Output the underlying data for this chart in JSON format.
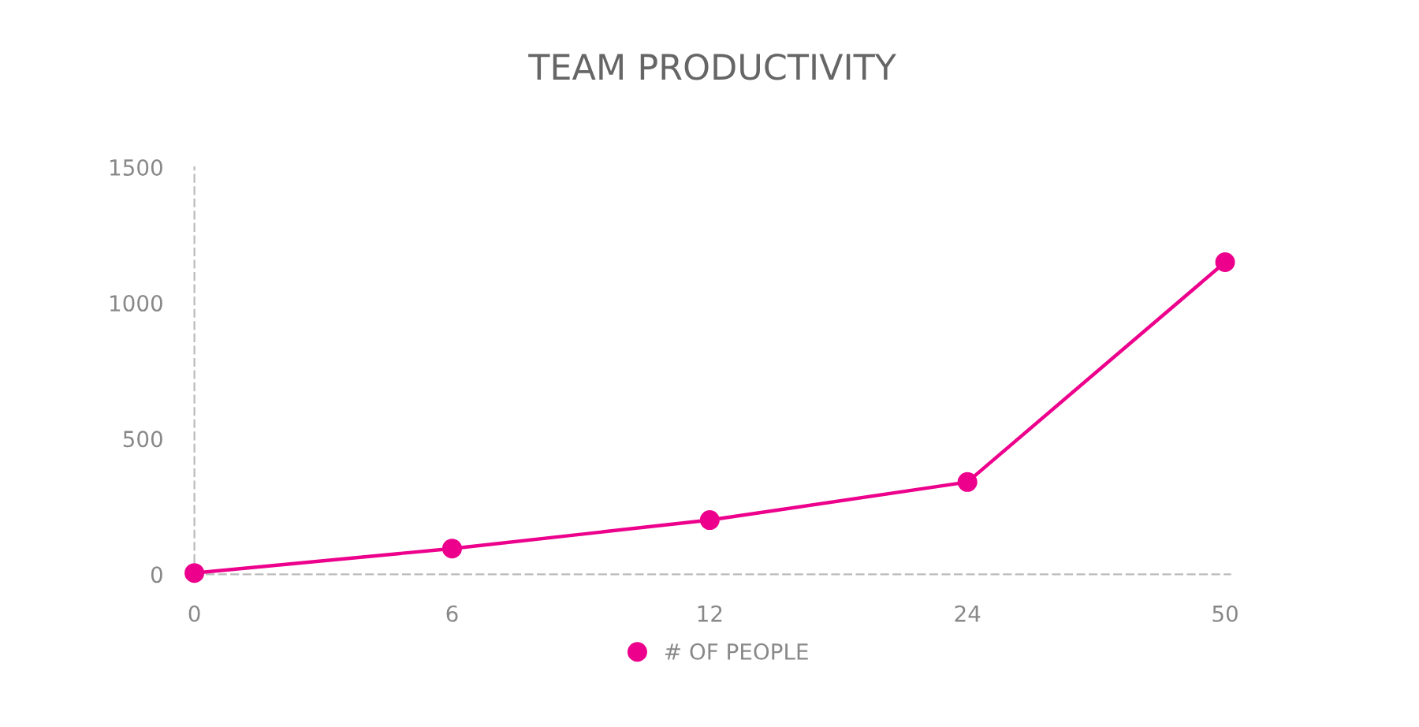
{
  "chart_data": {
    "type": "line",
    "title": "TEAM PRODUCTIVITY",
    "categories": [
      "0",
      "6",
      "12",
      "24",
      "50"
    ],
    "series": [
      {
        "name": "# OF PEOPLE",
        "color": "#ec008c",
        "values": [
          5,
          95,
          200,
          340,
          1150
        ]
      }
    ],
    "ylim": [
      0,
      1500
    ],
    "yticks": [
      0,
      500,
      1000,
      1500
    ],
    "grid": false,
    "legend": "bottom",
    "marker": "circle",
    "line_style": "solid"
  }
}
